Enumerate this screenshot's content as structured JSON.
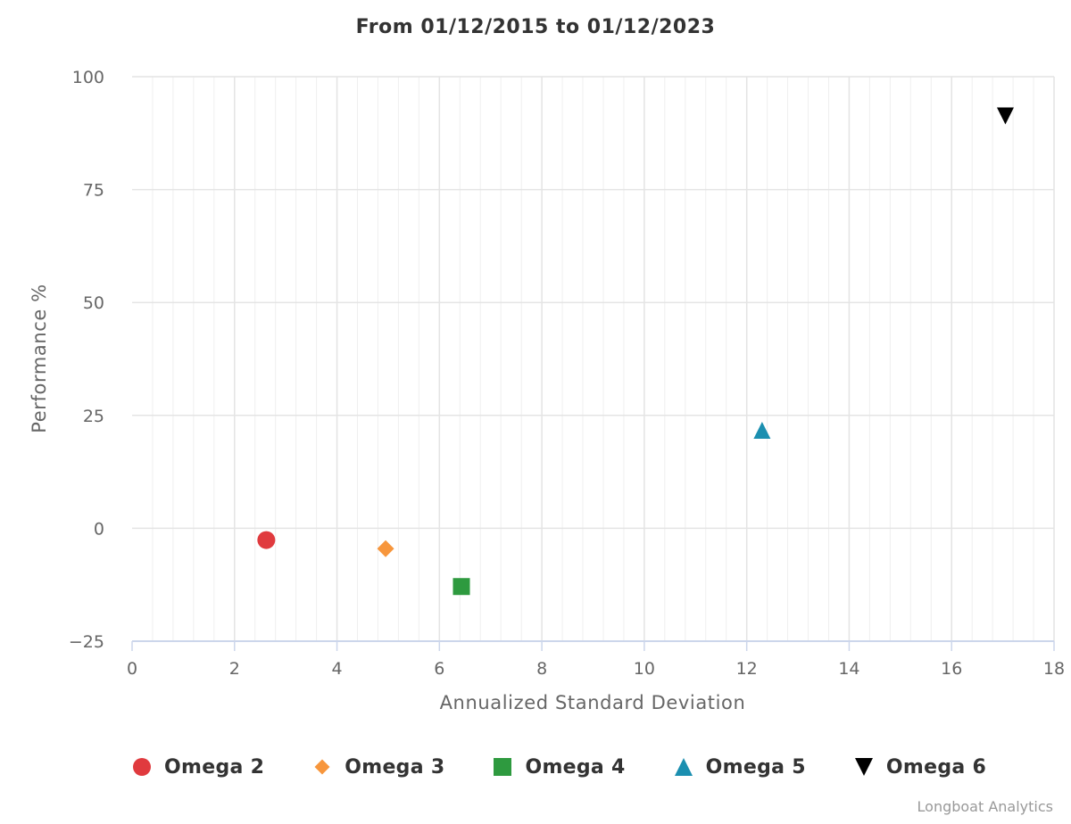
{
  "chart_data": {
    "type": "scatter",
    "title": "From 01/12/2015 to 01/12/2023",
    "xlabel": "Annualized Standard Deviation",
    "ylabel": "Performance %",
    "xlim": [
      0,
      18
    ],
    "ylim": [
      -25,
      100
    ],
    "x_ticks": [
      0,
      2,
      4,
      6,
      8,
      10,
      12,
      14,
      16,
      18
    ],
    "y_ticks": [
      -25,
      0,
      25,
      50,
      75,
      100
    ],
    "x_tick_labels": [
      "0",
      "2",
      "4",
      "6",
      "8",
      "10",
      "12",
      "14",
      "16",
      "18"
    ],
    "y_tick_labels": [
      "−25",
      "0",
      "25",
      "50",
      "75",
      "100"
    ],
    "grid": true,
    "legend_position": "bottom-left",
    "series": [
      {
        "name": "Omega 2",
        "x": [
          2.62
        ],
        "y": [
          -2.6
        ],
        "marker": "circle",
        "color": "#e03a3e"
      },
      {
        "name": "Omega 3",
        "x": [
          4.95
        ],
        "y": [
          -4.5
        ],
        "marker": "diamond",
        "color": "#f7963c"
      },
      {
        "name": "Omega 4",
        "x": [
          6.43
        ],
        "y": [
          -12.9
        ],
        "marker": "square",
        "color": "#2e9a3f"
      },
      {
        "name": "Omega 5",
        "x": [
          12.3
        ],
        "y": [
          21.7
        ],
        "marker": "triangle",
        "color": "#1b8fb0"
      },
      {
        "name": "Omega 6",
        "x": [
          17.05
        ],
        "y": [
          91.3
        ],
        "marker": "triangle-down",
        "color": "#000000"
      }
    ]
  },
  "credits": "Longboat Analytics"
}
